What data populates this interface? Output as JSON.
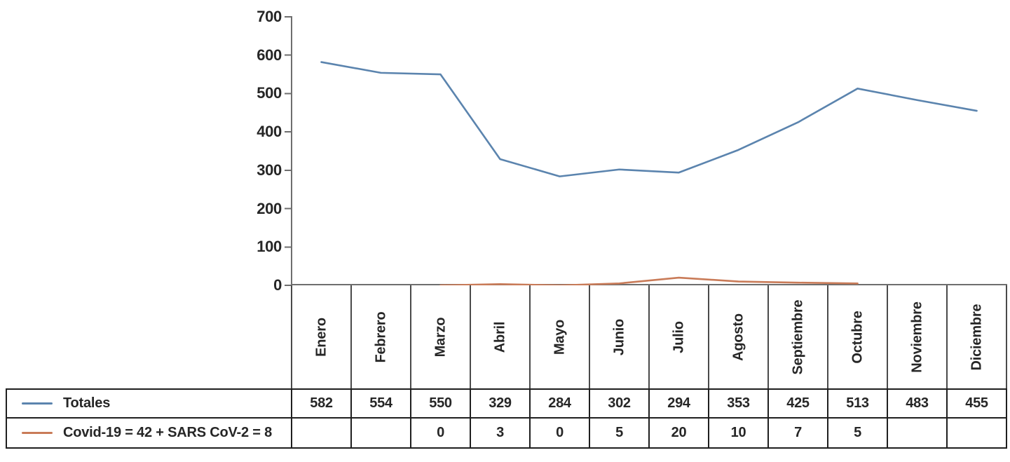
{
  "chart_data": {
    "type": "line",
    "title": "",
    "xlabel": "",
    "ylabel": "",
    "categories": [
      "Enero",
      "Febrero",
      "Marzo",
      "Abril",
      "Mayo",
      "Junio",
      "Julio",
      "Agosto",
      "Septiembre",
      "Octubre",
      "Noviembre",
      "Diciembre"
    ],
    "series": [
      {
        "name": "Totales",
        "color": "#5b84ae",
        "values": [
          582,
          554,
          550,
          329,
          284,
          302,
          294,
          353,
          425,
          513,
          483,
          455
        ]
      },
      {
        "name": "Covid-19 = 42 + SARS CoV-2 = 8",
        "color": "#c97b58",
        "values": [
          null,
          null,
          0,
          3,
          0,
          5,
          20,
          10,
          7,
          5,
          null,
          null
        ]
      }
    ],
    "ylim": [
      0,
      700
    ],
    "yticks": [
      0,
      100,
      200,
      300,
      400,
      500,
      600,
      700
    ],
    "grid": false,
    "legend_position": "table-left",
    "axis_color": "#6e6e6e",
    "table_border_color": "#1f1f1f",
    "text_color": "#262626"
  }
}
